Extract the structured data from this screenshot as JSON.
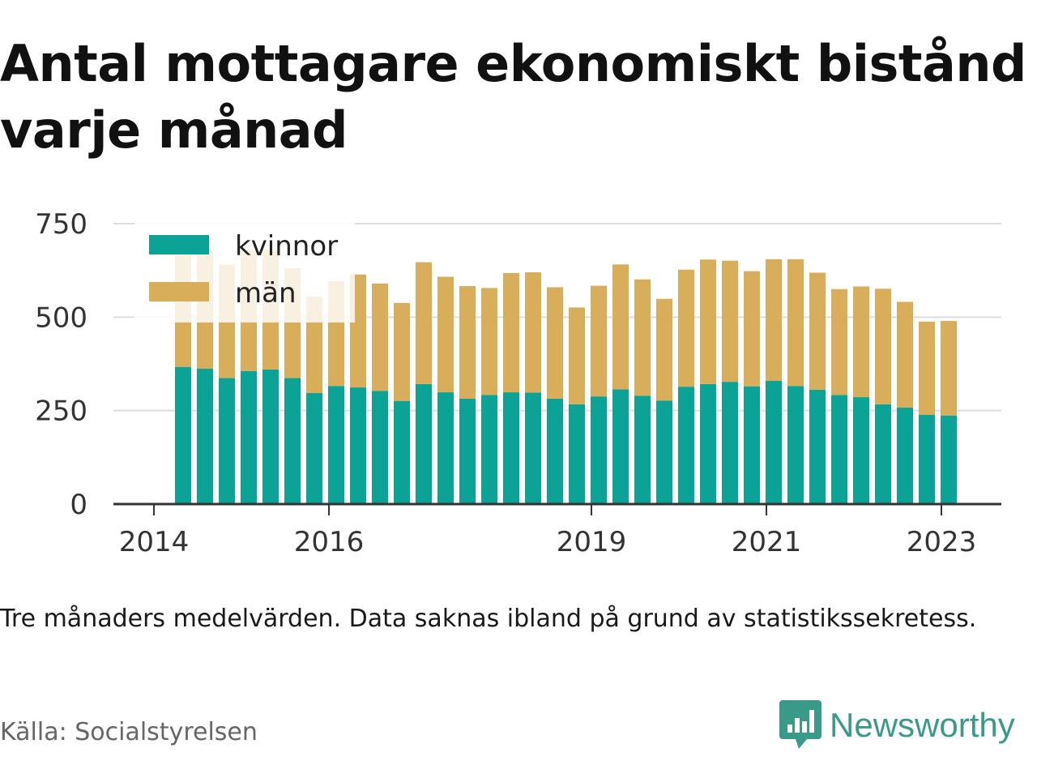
{
  "title_lines": [
    "Antal mottagare ekonomiskt bistånd",
    "varje månad"
  ],
  "note": "Tre månaders medelvärden. Data saknas ibland på grund av statistikssekretess.",
  "source": "Källa: Socialstyrelsen",
  "brand": {
    "name": "Newsworthy",
    "icon": "newsworthy-logo-icon",
    "color": "#3a9a8a"
  },
  "colors": {
    "kvinnor": "#0aa395",
    "man": "#d9ae5b",
    "grid": "#dddddd",
    "axis": "#333333"
  },
  "chart_data": {
    "type": "bar",
    "stacked": true,
    "x_start": "2014-05",
    "x_step_months": 3,
    "x_ticks": [
      "2014",
      "2016",
      "2019",
      "2021",
      "2023"
    ],
    "y_ticks": [
      "0",
      "250",
      "500",
      "750"
    ],
    "ylim": [
      0,
      750
    ],
    "grid": true,
    "legend_position": "top-left",
    "series": [
      {
        "name": "kvinnor",
        "values": [
          367,
          362,
          337,
          356,
          360,
          337,
          297,
          316,
          312,
          303,
          276,
          321,
          299,
          282,
          292,
          299,
          298,
          282,
          267,
          288,
          307,
          290,
          277,
          314,
          321,
          327,
          315,
          330,
          316,
          306,
          292,
          286,
          267,
          258,
          239,
          237
        ]
      },
      {
        "name": "män",
        "values": [
          313,
          319,
          304,
          324,
          320,
          294,
          258,
          280,
          302,
          287,
          262,
          326,
          309,
          301,
          286,
          319,
          322,
          298,
          259,
          296,
          334,
          311,
          272,
          313,
          333,
          324,
          308,
          325,
          339,
          313,
          283,
          296,
          309,
          283,
          249,
          253
        ]
      }
    ]
  }
}
